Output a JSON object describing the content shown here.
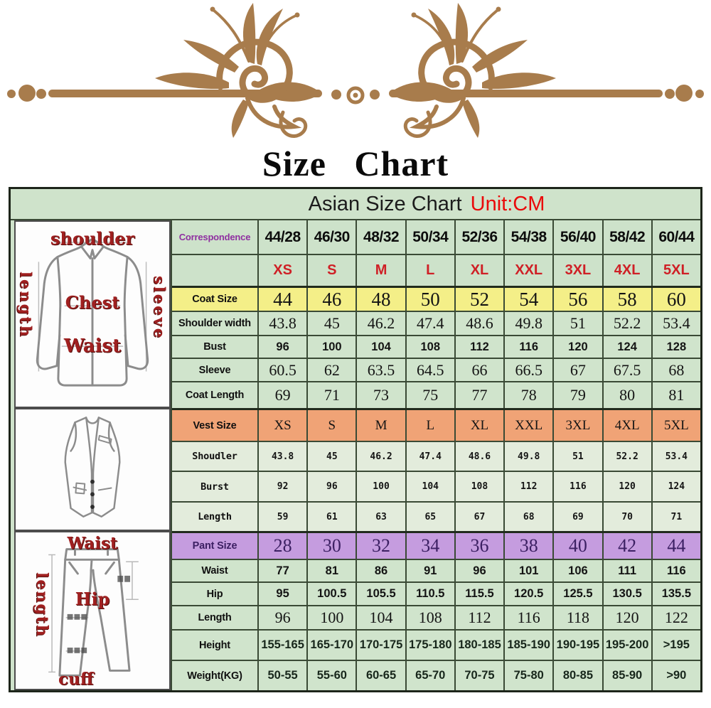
{
  "page": {
    "title": "Size Chart"
  },
  "table": {
    "subtitle": "Asian Size Chart",
    "unit_label": "Unit:CM",
    "rows": [
      {
        "id": "correspondence",
        "label": "Correspondence",
        "style": "corr",
        "values": [
          "44/28",
          "46/30",
          "48/32",
          "50/34",
          "52/36",
          "54/38",
          "56/40",
          "58/42",
          "60/44"
        ]
      },
      {
        "id": "international-size",
        "label": "",
        "style": "red",
        "values": [
          "XS",
          "S",
          "M",
          "L",
          "XL",
          "XXL",
          "3XL",
          "4XL",
          "5XL"
        ]
      },
      {
        "id": "coat-size",
        "label": "Coat Size",
        "style": "yellow",
        "values": [
          "44",
          "46",
          "48",
          "50",
          "52",
          "54",
          "56",
          "58",
          "60"
        ]
      },
      {
        "id": "shoulder-width",
        "label": "Shoulder width",
        "style": "serif",
        "values": [
          "43.8",
          "45",
          "46.2",
          "47.4",
          "48.6",
          "49.8",
          "51",
          "52.2",
          "53.4"
        ]
      },
      {
        "id": "bust",
        "label": "Bust",
        "style": "sans",
        "values": [
          "96",
          "100",
          "104",
          "108",
          "112",
          "116",
          "120",
          "124",
          "128"
        ]
      },
      {
        "id": "sleeve",
        "label": "Sleeve",
        "style": "serif",
        "values": [
          "60.5",
          "62",
          "63.5",
          "64.5",
          "66",
          "66.5",
          "67",
          "67.5",
          "68"
        ]
      },
      {
        "id": "coat-length",
        "label": "Coat Length",
        "style": "serif",
        "values": [
          "69",
          "71",
          "73",
          "75",
          "77",
          "78",
          "79",
          "80",
          "81"
        ]
      },
      {
        "id": "vest-size",
        "label": "Vest Size",
        "style": "orange",
        "values": [
          "XS",
          "S",
          "M",
          "L",
          "XL",
          "XXL",
          "3XL",
          "4XL",
          "5XL"
        ]
      },
      {
        "id": "vest-shoulder",
        "label": "Shoudler",
        "style": "mono",
        "values": [
          "43.8",
          "45",
          "46.2",
          "47.4",
          "48.6",
          "49.8",
          "51",
          "52.2",
          "53.4"
        ]
      },
      {
        "id": "vest-bust",
        "label": "Burst",
        "style": "mono",
        "values": [
          "92",
          "96",
          "100",
          "104",
          "108",
          "112",
          "116",
          "120",
          "124"
        ]
      },
      {
        "id": "vest-length",
        "label": "Length",
        "style": "mono",
        "values": [
          "59",
          "61",
          "63",
          "65",
          "67",
          "68",
          "69",
          "70",
          "71"
        ]
      },
      {
        "id": "pant-size",
        "label": "Pant Size",
        "style": "purple",
        "values": [
          "28",
          "30",
          "32",
          "34",
          "36",
          "38",
          "40",
          "42",
          "44"
        ]
      },
      {
        "id": "waist",
        "label": "Waist",
        "style": "sans",
        "values": [
          "77",
          "81",
          "86",
          "91",
          "96",
          "101",
          "106",
          "111",
          "116"
        ]
      },
      {
        "id": "hip",
        "label": "Hip",
        "style": "sans",
        "values": [
          "95",
          "100.5",
          "105.5",
          "110.5",
          "115.5",
          "120.5",
          "125.5",
          "130.5",
          "135.5"
        ]
      },
      {
        "id": "pant-length",
        "label": "Length",
        "style": "serif",
        "values": [
          "96",
          "100",
          "104",
          "108",
          "112",
          "116",
          "118",
          "120",
          "122"
        ]
      },
      {
        "id": "height",
        "label": "Height",
        "style": "range",
        "values": [
          "155-165",
          "165-170",
          "170-175",
          "175-180",
          "180-185",
          "185-190",
          "190-195",
          "195-200",
          ">195"
        ]
      },
      {
        "id": "weight",
        "label": "Weight(KG)",
        "style": "range",
        "values": [
          "50-55",
          "55-60",
          "60-65",
          "65-70",
          "70-75",
          "75-80",
          "80-85",
          "85-90",
          ">90"
        ]
      }
    ]
  },
  "illustrations": {
    "jacket": {
      "shoulder": "shoulder",
      "length": "length",
      "sleeve": "sleeve",
      "chest": "Chest",
      "waist": "Waist"
    },
    "pants": {
      "waist": "Waist",
      "length": "length",
      "hip": "Hip",
      "cuff": "cuff"
    }
  },
  "colors": {
    "ornament_brown": "#a87c4c",
    "table_green": "#cfe3cb",
    "row_yellow": "#f4ef88",
    "row_orange": "#f0a376",
    "row_purple": "#c59cdf",
    "size_red": "#cf2026",
    "unit_red": "#ea0a0a",
    "correspondence_purple": "#8f2fa0",
    "annotation_red": "#a02020"
  }
}
